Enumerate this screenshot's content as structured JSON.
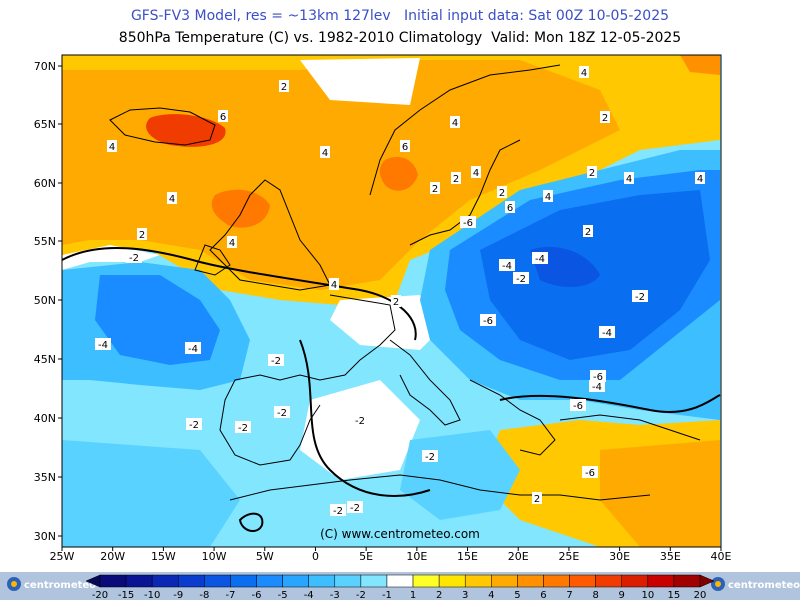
{
  "header": {
    "line1": "GFS-FV3 Model, res = ~13km 127lev   Initial input data: Sat 00Z 10-05-2025",
    "line2": "850hPa Temperature (C) vs. 1982-2010 Climatology  Valid: Mon 18Z 12-05-2025"
  },
  "axes": {
    "lat_labels": [
      "70N",
      "65N",
      "60N",
      "55N",
      "50N",
      "45N",
      "40N",
      "35N",
      "30N"
    ],
    "lon_labels": [
      "25W",
      "20W",
      "15W",
      "10W",
      "5W",
      "0",
      "5E",
      "10E",
      "15E",
      "20E",
      "25E",
      "30E",
      "35E",
      "40E"
    ]
  },
  "contour_labels": [
    "2",
    "4",
    "6",
    "4",
    "4",
    "2",
    "4",
    "6",
    "4",
    "2",
    "4",
    "2",
    "2",
    "4",
    "6",
    "4",
    "2",
    "2",
    "4",
    "4",
    "2",
    "4",
    "2",
    "-2",
    "-4",
    "-2",
    "-4",
    "-2",
    "-2",
    "-2",
    "-4",
    "-6",
    "-4",
    "-6",
    "-4",
    "-6",
    "-4",
    "-6",
    "-6",
    "-2",
    "-2",
    "-2",
    "-2",
    "-2",
    "-2",
    "2"
  ],
  "copyright": "(C) www.centrometeo.com",
  "brand_left": "centrometeo",
  "brand_right": "centrometeo",
  "legend": {
    "labels": [
      "-20",
      "-15",
      "-10",
      "-9",
      "-8",
      "-7",
      "-6",
      "-5",
      "-4",
      "-3",
      "-2",
      "-1",
      "1",
      "2",
      "3",
      "4",
      "5",
      "6",
      "7",
      "8",
      "9",
      "10",
      "15",
      "20"
    ],
    "colors": [
      "#0a0a78",
      "#0c1496",
      "#0a28b4",
      "#0a3ccd",
      "#0a55e1",
      "#0a6ef0",
      "#1a8cff",
      "#28a5ff",
      "#3cbeff",
      "#5ad2ff",
      "#82e6ff",
      "#ffffff",
      "#ffff28",
      "#ffe600",
      "#ffc800",
      "#ffaa00",
      "#ff9100",
      "#ff7800",
      "#ff5a00",
      "#f03c00",
      "#dc1e00",
      "#c80000",
      "#a00000"
    ]
  },
  "colors": {
    "warm": "#ffaa00",
    "cold": "#1a8cff",
    "title_blue": "#3a4fc8"
  }
}
